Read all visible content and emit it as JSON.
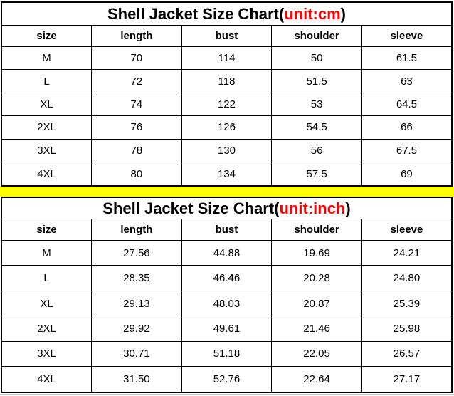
{
  "colors": {
    "accent_red": "#ff0000",
    "divider_yellow": "#ffff00",
    "border_black": "#000000",
    "background": "#ffffff"
  },
  "tables": [
    {
      "title_prefix": "Shell Jacket Size Chart(",
      "title_unit": "unit:cm",
      "title_suffix": ")",
      "headers": [
        "size",
        "length",
        "bust",
        "shoulder",
        "sleeve"
      ],
      "rows": [
        [
          "M",
          "70",
          "114",
          "50",
          "61.5"
        ],
        [
          "L",
          "72",
          "118",
          "51.5",
          "63"
        ],
        [
          "XL",
          "74",
          "122",
          "53",
          "64.5"
        ],
        [
          "2XL",
          "76",
          "126",
          "54.5",
          "66"
        ],
        [
          "3XL",
          "78",
          "130",
          "56",
          "67.5"
        ],
        [
          "4XL",
          "80",
          "134",
          "57.5",
          "69"
        ]
      ]
    },
    {
      "title_prefix": "Shell Jacket Size Chart(",
      "title_unit": "unit:inch",
      "title_suffix": ")",
      "headers": [
        "size",
        "length",
        "bust",
        "shoulder",
        "sleeve"
      ],
      "rows": [
        [
          "M",
          "27.56",
          "44.88",
          "19.69",
          "24.21"
        ],
        [
          "L",
          "28.35",
          "46.46",
          "20.28",
          "24.80"
        ],
        [
          "XL",
          "29.13",
          "48.03",
          "20.87",
          "25.39"
        ],
        [
          "2XL",
          "29.92",
          "49.61",
          "21.46",
          "25.98"
        ],
        [
          "3XL",
          "30.71",
          "51.18",
          "22.05",
          "26.57"
        ],
        [
          "4XL",
          "31.50",
          "52.76",
          "22.64",
          "27.17"
        ]
      ]
    }
  ]
}
